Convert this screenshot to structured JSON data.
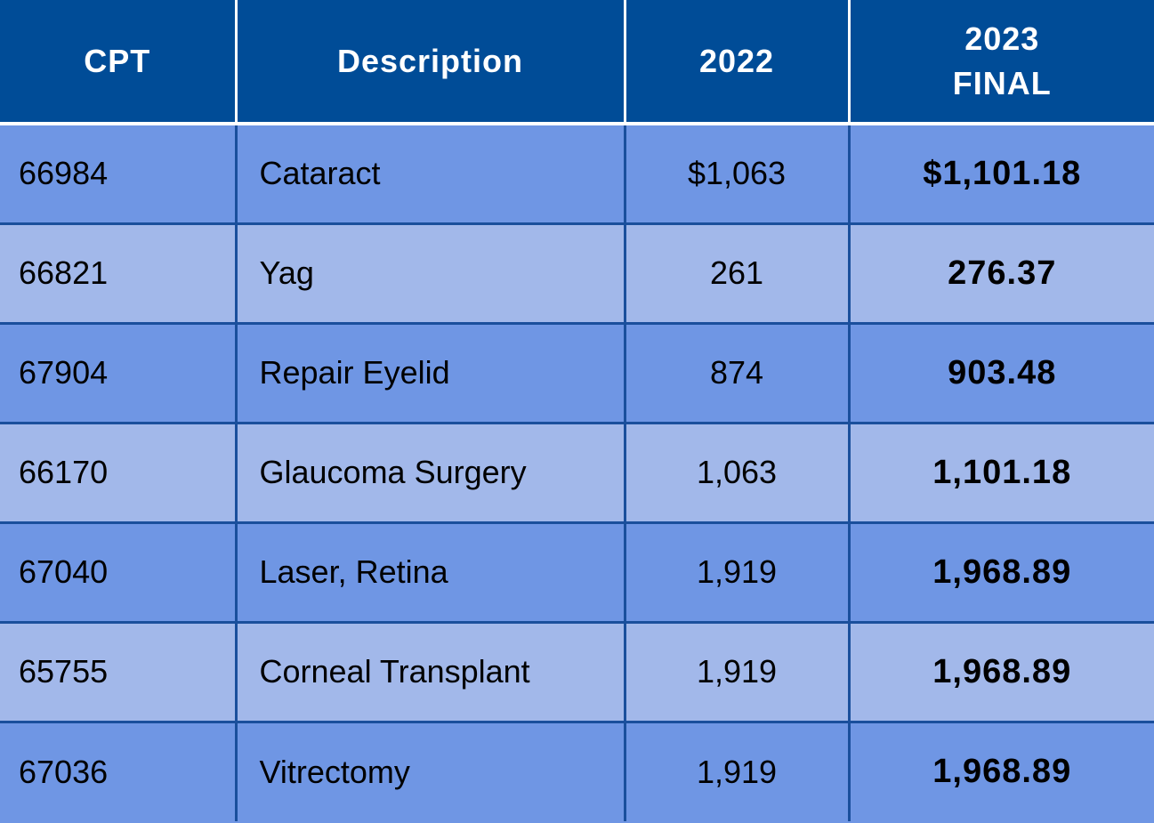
{
  "table": {
    "headers": {
      "cpt": "CPT",
      "description": "Description",
      "y2022": "2022",
      "y2023_line1": "2023",
      "y2023_line2": "FINAL"
    },
    "rows": [
      {
        "cpt": "66984",
        "description": "Cataract",
        "y2022": "$1,063",
        "y2023": "$1,101.18"
      },
      {
        "cpt": "66821",
        "description": "Yag",
        "y2022": "261",
        "y2023": "276.37"
      },
      {
        "cpt": "67904",
        "description": "Repair Eyelid",
        "y2022": "874",
        "y2023": "903.48"
      },
      {
        "cpt": "66170",
        "description": "Glaucoma Surgery",
        "y2022": "1,063",
        "y2023": "1,101.18"
      },
      {
        "cpt": "67040",
        "description": "Laser, Retina",
        "y2022": "1,919",
        "y2023": "1,968.89"
      },
      {
        "cpt": "65755",
        "description": "Corneal Transplant",
        "y2022": "1,919",
        "y2023": "1,968.89"
      },
      {
        "cpt": "67036",
        "description": "Vitrectomy",
        "y2022": "1,919",
        "y2023": "1,968.89"
      }
    ]
  },
  "colors": {
    "header_bg": "#004c97",
    "row_dark": "#6f96e4",
    "row_light": "#a2b8ea",
    "grid_line": "#1a4f9c"
  }
}
